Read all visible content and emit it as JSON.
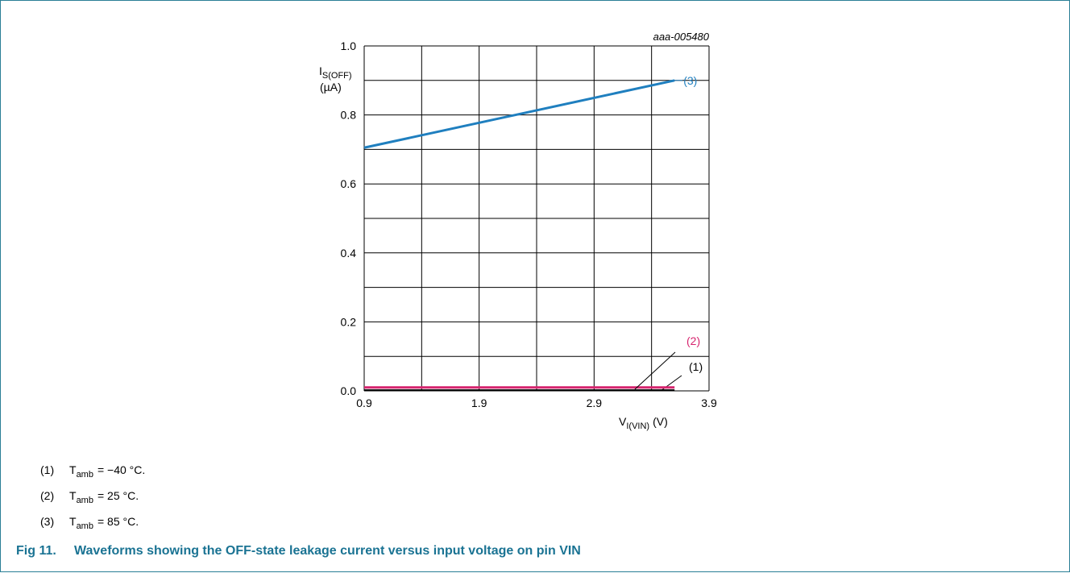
{
  "chart_data": {
    "type": "line",
    "figure_id": "aaa-005480",
    "y_label": {
      "symbol": "I",
      "subscript": "S(OFF)",
      "unit": "(µA)"
    },
    "x_label": {
      "symbol": "V",
      "subscript": "I(VIN)",
      "unit": "(V)"
    },
    "x": [
      0.9,
      3.6
    ],
    "series": [
      {
        "name": "(1)",
        "color": "#000000",
        "values": [
          0.002,
          0.002
        ]
      },
      {
        "name": "(2)",
        "color": "#d6246e",
        "values": [
          0.01,
          0.01
        ]
      },
      {
        "name": "(3)",
        "color": "#1f7fbf",
        "values": [
          0.705,
          0.9
        ]
      }
    ],
    "xlim": [
      0.9,
      3.9
    ],
    "ylim": [
      0,
      1
    ],
    "xticks": [
      0.9,
      1.9,
      2.9,
      3.9
    ],
    "xgrid_minor": [
      1.4,
      2.4,
      3.4
    ],
    "yticks": [
      {
        "value": 0,
        "label": "0.0"
      },
      0.2,
      0.4,
      0.6,
      0.8,
      {
        "value": 1,
        "label": "1.0"
      }
    ],
    "ygrid_minor": [
      0.1,
      0.3,
      0.5,
      0.7,
      0.9
    ],
    "grid": true,
    "notes": [
      {
        "label": "(1)",
        "symbol": "T",
        "subscript": "amb",
        "text": "= −40 °C."
      },
      {
        "label": "(2)",
        "symbol": "T",
        "subscript": "amb",
        "text": "= 25 °C."
      },
      {
        "label": "(3)",
        "symbol": "T",
        "subscript": "amb",
        "text": "= 85 °C."
      }
    ],
    "caption": {
      "number": "Fig 11.",
      "text": "Waveforms showing the OFF-state leakage current versus input voltage on pin VIN"
    }
  }
}
